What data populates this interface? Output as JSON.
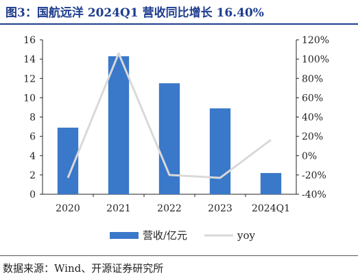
{
  "figure": {
    "title": "图3：国航远洋 2024Q1 营收同比增长 16.40%",
    "source": "数据来源：Wind、开源证券研究所"
  },
  "chart_data": {
    "type": "bar",
    "categories": [
      "2020",
      "2021",
      "2022",
      "2023",
      "2024Q1"
    ],
    "series": [
      {
        "name": "营收/亿元",
        "type": "bar",
        "axis": "left",
        "color": "#3a78c9",
        "values": [
          6.9,
          14.3,
          11.5,
          8.9,
          2.2
        ]
      },
      {
        "name": "yoy",
        "type": "line",
        "axis": "right",
        "color": "#d9d9d9",
        "values": [
          -23,
          106,
          -20,
          -23,
          16.4
        ]
      }
    ],
    "y_left": {
      "ylim": [
        0,
        16
      ],
      "ticks": [
        "0",
        "2",
        "4",
        "6",
        "8",
        "10",
        "12",
        "14",
        "16"
      ]
    },
    "y_right": {
      "ylim": [
        -40,
        120
      ],
      "ticks": [
        "-40%",
        "-20%",
        "0%",
        "20%",
        "40%",
        "60%",
        "80%",
        "100%",
        "120%"
      ]
    },
    "grid": false,
    "legend_position": "bottom"
  }
}
